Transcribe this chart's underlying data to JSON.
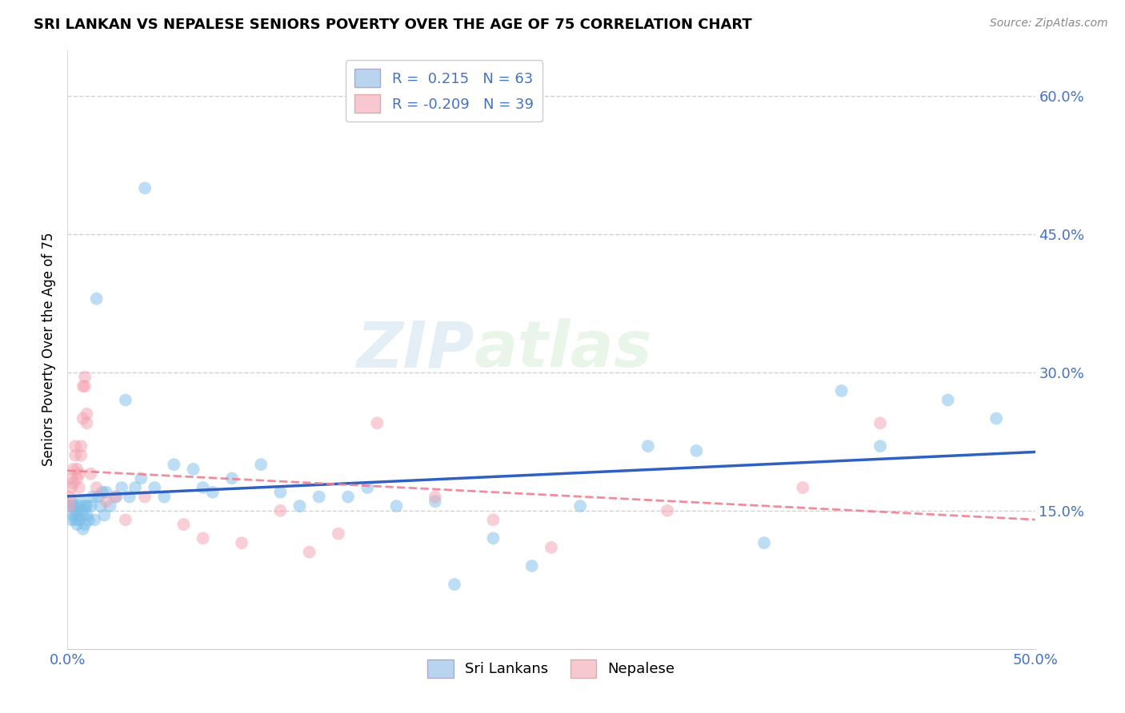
{
  "title": "SRI LANKAN VS NEPALESE SENIORS POVERTY OVER THE AGE OF 75 CORRELATION CHART",
  "source": "Source: ZipAtlas.com",
  "ylabel": "Seniors Poverty Over the Age of 75",
  "xlim": [
    0.0,
    0.5
  ],
  "ylim": [
    0.0,
    0.65
  ],
  "xticks": [
    0.0,
    0.1,
    0.2,
    0.3,
    0.4,
    0.5
  ],
  "xticklabels": [
    "0.0%",
    "",
    "",
    "",
    "",
    "50.0%"
  ],
  "yticks": [
    0.15,
    0.3,
    0.45,
    0.6
  ],
  "yticklabels": [
    "15.0%",
    "30.0%",
    "45.0%",
    "60.0%"
  ],
  "sri_lankans_color": "#7abde8",
  "nepalese_color": "#f4a0b0",
  "sri_lankans_R": 0.215,
  "nepalese_R": -0.209,
  "sri_lankans_N": 63,
  "nepalese_N": 39,
  "watermark_zip": "ZIP",
  "watermark_atlas": "atlas",
  "sl_line_color": "#3060c0",
  "np_line_color": "#f08090",
  "sri_lankans_x": [
    0.001,
    0.002,
    0.002,
    0.003,
    0.003,
    0.004,
    0.004,
    0.005,
    0.005,
    0.006,
    0.006,
    0.007,
    0.007,
    0.008,
    0.008,
    0.009,
    0.009,
    0.01,
    0.01,
    0.011,
    0.012,
    0.013,
    0.014,
    0.015,
    0.016,
    0.017,
    0.018,
    0.019,
    0.02,
    0.022,
    0.025,
    0.028,
    0.03,
    0.032,
    0.035,
    0.038,
    0.04,
    0.045,
    0.05,
    0.055,
    0.065,
    0.07,
    0.075,
    0.085,
    0.1,
    0.11,
    0.12,
    0.13,
    0.145,
    0.155,
    0.17,
    0.19,
    0.2,
    0.22,
    0.24,
    0.265,
    0.3,
    0.325,
    0.36,
    0.4,
    0.42,
    0.455,
    0.48
  ],
  "sri_lankans_y": [
    0.155,
    0.14,
    0.16,
    0.145,
    0.155,
    0.14,
    0.15,
    0.135,
    0.145,
    0.155,
    0.14,
    0.15,
    0.16,
    0.13,
    0.145,
    0.155,
    0.135,
    0.145,
    0.155,
    0.14,
    0.155,
    0.165,
    0.14,
    0.38,
    0.165,
    0.155,
    0.17,
    0.145,
    0.17,
    0.155,
    0.165,
    0.175,
    0.27,
    0.165,
    0.175,
    0.185,
    0.5,
    0.175,
    0.165,
    0.2,
    0.195,
    0.175,
    0.17,
    0.185,
    0.2,
    0.17,
    0.155,
    0.165,
    0.165,
    0.175,
    0.155,
    0.16,
    0.07,
    0.12,
    0.09,
    0.155,
    0.22,
    0.215,
    0.115,
    0.28,
    0.22,
    0.27,
    0.25
  ],
  "nepalese_x": [
    0.001,
    0.001,
    0.002,
    0.002,
    0.003,
    0.003,
    0.004,
    0.004,
    0.005,
    0.005,
    0.006,
    0.006,
    0.007,
    0.007,
    0.008,
    0.008,
    0.009,
    0.009,
    0.01,
    0.01,
    0.012,
    0.015,
    0.02,
    0.025,
    0.03,
    0.04,
    0.06,
    0.07,
    0.09,
    0.11,
    0.125,
    0.14,
    0.16,
    0.19,
    0.22,
    0.25,
    0.31,
    0.38,
    0.42
  ],
  "nepalese_y": [
    0.155,
    0.165,
    0.185,
    0.175,
    0.195,
    0.18,
    0.22,
    0.21,
    0.195,
    0.185,
    0.175,
    0.19,
    0.21,
    0.22,
    0.25,
    0.285,
    0.285,
    0.295,
    0.245,
    0.255,
    0.19,
    0.175,
    0.16,
    0.165,
    0.14,
    0.165,
    0.135,
    0.12,
    0.115,
    0.15,
    0.105,
    0.125,
    0.245,
    0.165,
    0.14,
    0.11,
    0.15,
    0.175,
    0.245
  ]
}
